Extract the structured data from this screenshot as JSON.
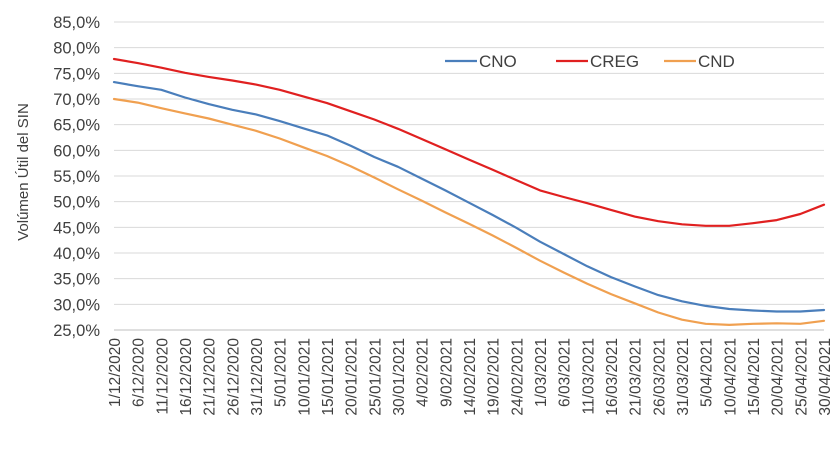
{
  "chart_data": {
    "type": "line",
    "title": "",
    "xlabel": "",
    "ylabel": "Volúmen Útil del SIN",
    "ylim": [
      25,
      85
    ],
    "yticks": [
      "25,0%",
      "30,0%",
      "35,0%",
      "40,0%",
      "45,0%",
      "50,0%",
      "55,0%",
      "60,0%",
      "65,0%",
      "70,0%",
      "75,0%",
      "80,0%",
      "85,0%"
    ],
    "grid": true,
    "legend_position": "top-right",
    "categories": [
      "1/12/2020",
      "6/12/2020",
      "11/12/2020",
      "16/12/2020",
      "21/12/2020",
      "26/12/2020",
      "31/12/2020",
      "5/01/2021",
      "10/01/2021",
      "15/01/2021",
      "20/01/2021",
      "25/01/2021",
      "30/01/2021",
      "4/02/2021",
      "9/02/2021",
      "14/02/2021",
      "19/02/2021",
      "24/02/2021",
      "1/03/2021",
      "6/03/2021",
      "11/03/2021",
      "16/03/2021",
      "21/03/2021",
      "26/03/2021",
      "31/03/2021",
      "5/04/2021",
      "10/04/2021",
      "15/04/2021",
      "20/04/2021",
      "25/04/2021",
      "30/04/2021"
    ],
    "series": [
      {
        "name": "CNO",
        "color": "#4a7ebb",
        "values": [
          73.3,
          72.5,
          71.8,
          70.3,
          69.0,
          67.9,
          67.0,
          65.7,
          64.3,
          62.9,
          60.9,
          58.7,
          56.8,
          54.5,
          52.2,
          49.8,
          47.4,
          44.9,
          42.2,
          39.8,
          37.4,
          35.3,
          33.5,
          31.8,
          30.6,
          29.7,
          29.1,
          28.8,
          28.6,
          28.6,
          28.9
        ]
      },
      {
        "name": "CREG",
        "color": "#e02020",
        "values": [
          77.8,
          77.0,
          76.1,
          75.1,
          74.3,
          73.6,
          72.8,
          71.8,
          70.5,
          69.2,
          67.6,
          66.0,
          64.2,
          62.2,
          60.2,
          58.2,
          56.2,
          54.2,
          52.2,
          50.9,
          49.7,
          48.4,
          47.1,
          46.2,
          45.6,
          45.3,
          45.3,
          45.8,
          46.4,
          47.6,
          49.4
        ]
      },
      {
        "name": "CND",
        "color": "#f0a050",
        "values": [
          70.0,
          69.3,
          68.2,
          67.2,
          66.2,
          65.0,
          63.8,
          62.3,
          60.6,
          58.9,
          56.9,
          54.7,
          52.4,
          50.2,
          47.9,
          45.7,
          43.4,
          41.0,
          38.5,
          36.2,
          34.0,
          32.0,
          30.2,
          28.4,
          27.0,
          26.2,
          26.0,
          26.2,
          26.3,
          26.2,
          26.8
        ]
      }
    ]
  }
}
